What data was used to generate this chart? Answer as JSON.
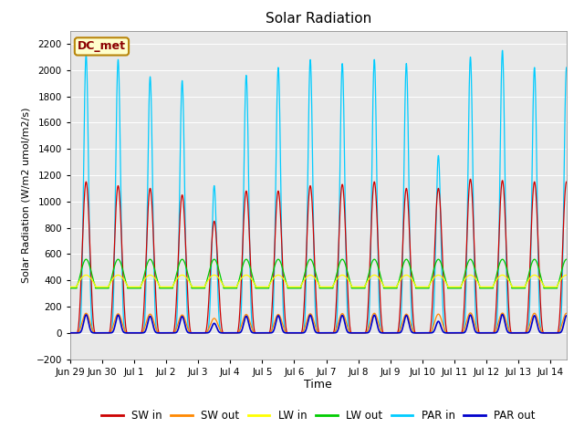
{
  "title": "Solar Radiation",
  "ylabel": "Solar Radiation (W/m2 umol/m2/s)",
  "xlabel": "Time",
  "annotation": "DC_met",
  "ylim": [
    -200,
    2300
  ],
  "yticks": [
    -200,
    0,
    200,
    400,
    600,
    800,
    1000,
    1200,
    1400,
    1600,
    1800,
    2000,
    2200
  ],
  "xlim": [
    0,
    15.5
  ],
  "colors": {
    "SW_in": "#cc0000",
    "SW_out": "#ff8800",
    "LW_in": "#ffff00",
    "LW_out": "#00cc00",
    "PAR_in": "#00ccff",
    "PAR_out": "#0000cc"
  },
  "bg_color": "#e8e8e8",
  "tick_labels": [
    "Jun 29",
    "Jun 30",
    "Jul 1",
    "Jul 2",
    "Jul 3",
    "Jul 4",
    "Jul 5",
    "Jul 6",
    "Jul 7",
    "Jul 8",
    "Jul 9",
    "Jul 10",
    "Jul 11",
    "Jul 12",
    "Jul 13",
    "Jul 14"
  ],
  "legend_labels": [
    "SW in",
    "SW out",
    "LW in",
    "LW out",
    "PAR in",
    "PAR out"
  ],
  "SW_in_peaks": [
    1150,
    1120,
    1100,
    1050,
    850,
    1080,
    1080,
    1120,
    1130,
    1150,
    1100,
    1100,
    1170,
    1160,
    1150
  ],
  "PAR_in_peaks": [
    2120,
    2080,
    1950,
    1920,
    1120,
    1960,
    2020,
    2080,
    2050,
    2080,
    2050,
    1350,
    2100,
    2150,
    2020
  ],
  "LW_in_base": 390,
  "LW_out_base": 420,
  "day_start": 0.21,
  "day_end": 0.79,
  "PAR_sharpness": 6.0,
  "SW_sharpness": 2.5
}
